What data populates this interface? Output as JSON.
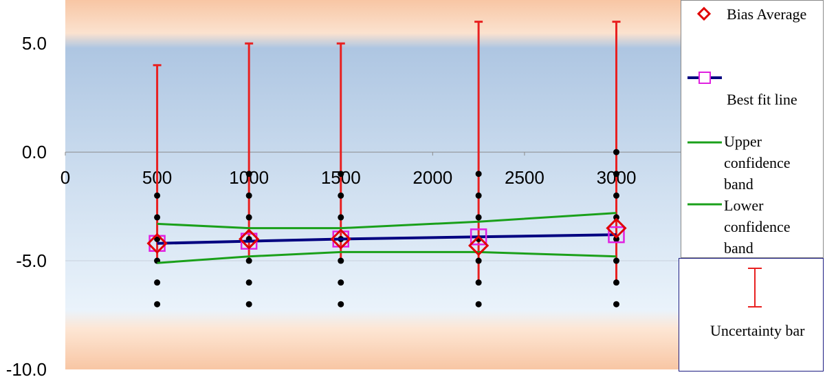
{
  "chart_data": {
    "type": "scatter",
    "xlim": [
      0,
      3350
    ],
    "ylim": [
      -10,
      7
    ],
    "xticks": [
      0,
      500,
      1000,
      1500,
      2000,
      2500,
      3000
    ],
    "yticks": [
      {
        "value": 5,
        "label": "5.0"
      },
      {
        "value": 0,
        "label": "0.0"
      },
      {
        "value": -5,
        "label": "-5.0"
      },
      {
        "value": -10,
        "label": "-10.0"
      }
    ],
    "grid": true,
    "legend": "right",
    "series": [
      {
        "name": "Bias Average",
        "kind": "scatter",
        "marker": "diamond",
        "color": "#e00000",
        "x": [
          500,
          1000,
          1500,
          2250,
          3000
        ],
        "values": [
          -4.2,
          -4.0,
          -4.0,
          -4.3,
          -3.5
        ]
      },
      {
        "name": "Best fit line",
        "kind": "line",
        "marker": "square",
        "color": "#000080",
        "marker_color": "#e020e0",
        "x": [
          500,
          1000,
          1500,
          2250,
          3000
        ],
        "values": [
          -4.2,
          -4.1,
          -4.0,
          -3.9,
          -3.8
        ]
      },
      {
        "name": "Upper confidence band",
        "kind": "line",
        "color": "#1aa01a",
        "x": [
          500,
          1000,
          1500,
          2250,
          3000
        ],
        "values": [
          -3.3,
          -3.5,
          -3.5,
          -3.2,
          -2.8
        ]
      },
      {
        "name": "Lower confidence band",
        "kind": "line",
        "color": "#1aa01a",
        "x": [
          500,
          1000,
          1500,
          2250,
          3000
        ],
        "values": [
          -5.1,
          -4.8,
          -4.6,
          -4.6,
          -4.8
        ]
      },
      {
        "name": "Uncertainty bar",
        "kind": "errorbar",
        "color": "#e82020",
        "x": [
          500,
          1000,
          1500,
          2250,
          3000
        ],
        "high": [
          4,
          5,
          5,
          6,
          6
        ],
        "low": [
          -5,
          -5,
          -5,
          -6,
          -6
        ]
      },
      {
        "kind": "scatter",
        "marker": "dot",
        "color": "#000000",
        "x": [
          500,
          500,
          500,
          500,
          500,
          500,
          1000,
          1000,
          1000,
          1000,
          1000,
          1000,
          1000,
          1500,
          1500,
          1500,
          1500,
          1500,
          1500,
          1500,
          2250,
          2250,
          2250,
          2250,
          2250,
          2250,
          2250,
          3000,
          3000,
          3000,
          3000,
          3000,
          3000,
          3000,
          3000
        ],
        "values": [
          -2,
          -3,
          -4,
          -5,
          -6,
          -7,
          -1,
          -2,
          -3,
          -4,
          -5,
          -6,
          -7,
          -1,
          -2,
          -3,
          -4,
          -5,
          -6,
          -7,
          -1,
          -2,
          -3,
          -4,
          -5,
          -6,
          -7,
          0,
          -1,
          -2,
          -3,
          -4,
          -5,
          -6,
          -7
        ]
      }
    ]
  }
}
